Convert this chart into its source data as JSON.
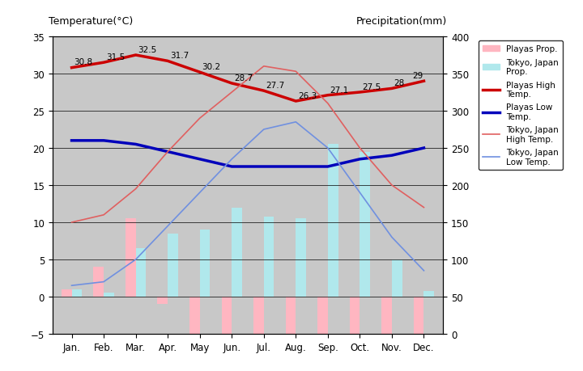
{
  "months": [
    "Jan.",
    "Feb.",
    "Mar.",
    "Apr.",
    "May",
    "Jun.",
    "Jul.",
    "Aug.",
    "Sep.",
    "Oct.",
    "Nov.",
    "Dec."
  ],
  "playas_high": [
    30.8,
    31.5,
    32.5,
    31.7,
    30.2,
    28.7,
    27.7,
    26.3,
    27.1,
    27.5,
    28.0,
    29.0
  ],
  "playas_low": [
    21.0,
    21.0,
    20.5,
    19.5,
    18.5,
    17.5,
    17.5,
    17.5,
    17.5,
    18.5,
    19.0,
    20.0
  ],
  "tokyo_high": [
    10.0,
    11.0,
    14.5,
    19.5,
    24.0,
    27.5,
    31.0,
    30.3,
    26.0,
    20.0,
    15.0,
    12.0
  ],
  "tokyo_low": [
    1.5,
    2.0,
    5.0,
    9.5,
    14.0,
    18.5,
    22.5,
    23.5,
    20.0,
    14.0,
    8.0,
    3.5
  ],
  "playas_precip_val": [
    1.0,
    4.0,
    10.5,
    -1.0,
    -5.0,
    -5.5,
    -5.5,
    -5.5,
    -5.5,
    -5.5,
    -5.0,
    -5.0
  ],
  "tokyo_precip_val": [
    1.0,
    0.5,
    6.5,
    8.5,
    9.0,
    12.0,
    10.8,
    10.5,
    20.5,
    19.5,
    5.0,
    0.8
  ],
  "playas_high_labels": [
    "30.8",
    "31.5",
    "32.5",
    "31.7",
    "30.2",
    "28.7",
    "27.7",
    "26.3",
    "27.1",
    "27.5",
    "28",
    "29"
  ],
  "bg_color": "#c8c8c8",
  "playas_precip_color": "#ffb6c1",
  "tokyo_precip_color": "#b0e8ec",
  "playas_high_color": "#cc0000",
  "playas_low_color": "#0000bb",
  "tokyo_high_color": "#e06060",
  "tokyo_low_color": "#7090e0",
  "title_left": "Temperature(°C)",
  "title_right": "Precipitation(mm)",
  "ylim_left": [
    -5,
    35
  ],
  "ylim_right": [
    0,
    400
  ],
  "yticks_left": [
    -5,
    0,
    5,
    10,
    15,
    20,
    25,
    30,
    35
  ],
  "yticks_right": [
    0,
    50,
    100,
    150,
    200,
    250,
    300,
    350,
    400
  ]
}
